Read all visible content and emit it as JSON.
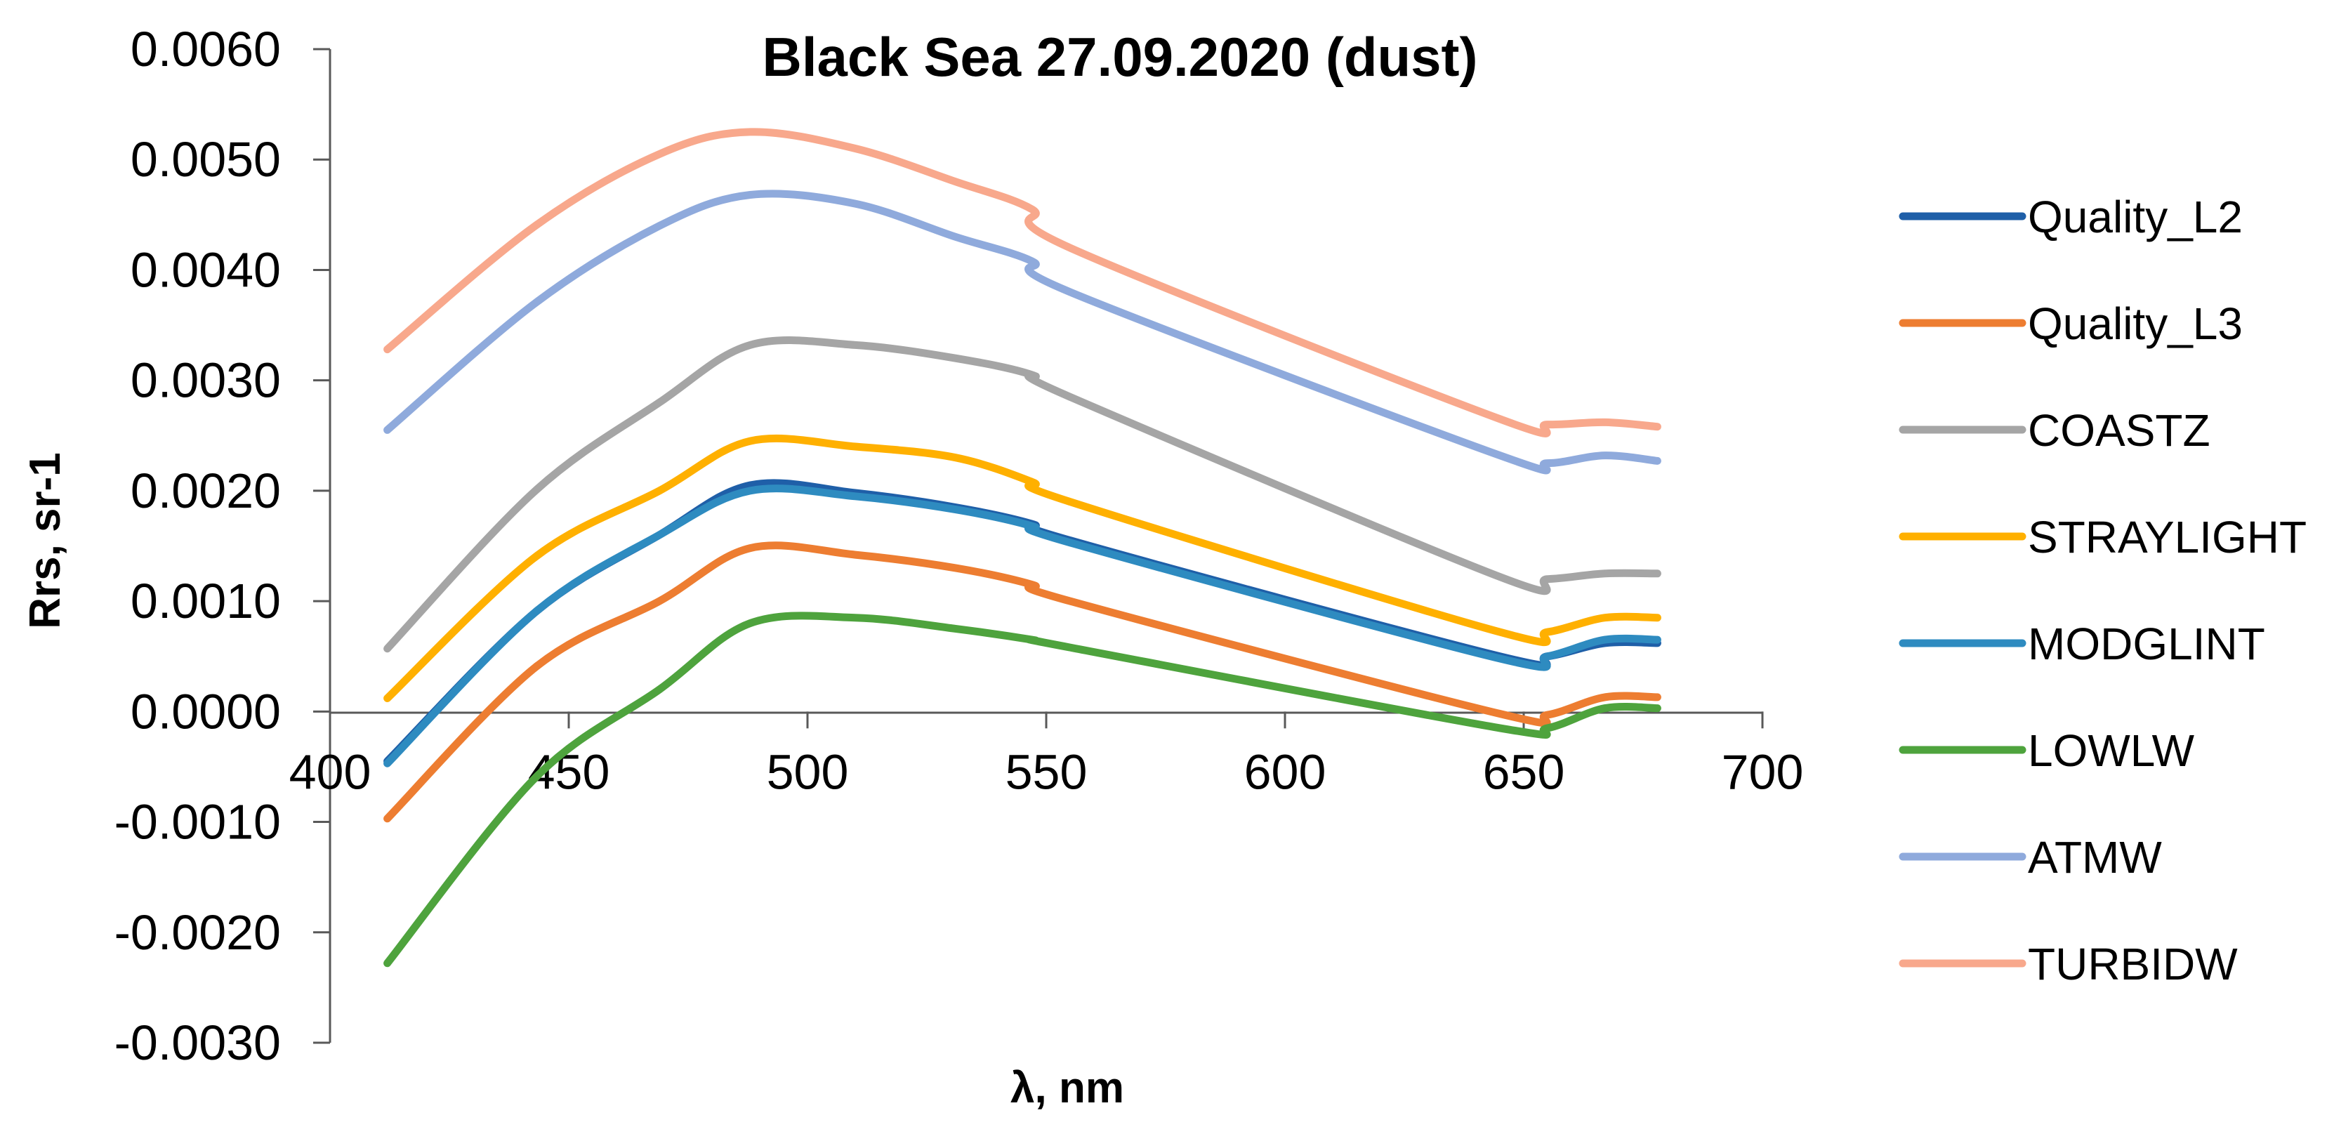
{
  "chart_data": {
    "type": "line",
    "title": "Black Sea 27.09.2020 (dust)",
    "xlabel": "λ, nm",
    "ylabel": "Rrs, sr-1",
    "xlim": [
      400,
      700
    ],
    "ylim": [
      -0.003,
      0.006
    ],
    "x_ticks": [
      "400",
      "450",
      "500",
      "550",
      "600",
      "650",
      "700"
    ],
    "y_ticks": [
      "0.0060",
      "0.0050",
      "0.0040",
      "0.0030",
      "0.0020",
      "0.0010",
      "0.0000",
      "-0.0010",
      "-0.0020",
      "-0.0030"
    ],
    "x_tick_values": [
      400,
      450,
      500,
      550,
      600,
      650,
      700
    ],
    "y_tick_values": [
      0.006,
      0.005,
      0.004,
      0.003,
      0.002,
      0.001,
      0.0,
      -0.001,
      -0.002,
      -0.003
    ],
    "grid": false,
    "legend_position": "right",
    "x": [
      412,
      443,
      469,
      488,
      510,
      531,
      547,
      555,
      645,
      655,
      667,
      678
    ],
    "series": [
      {
        "name": "Quality_L2",
        "color": "#1F5FA8",
        "values": [
          -0.00045,
          0.0009,
          0.0016,
          0.00205,
          0.00198,
          0.00185,
          0.0017,
          0.00155,
          0.0005,
          0.0005,
          0.00062,
          0.00062
        ]
      },
      {
        "name": "Quality_L3",
        "color": "#ED7D31",
        "values": [
          -0.00097,
          0.0004,
          0.001,
          0.00148,
          0.00142,
          0.0013,
          0.00115,
          0.001,
          -2e-05,
          -3e-05,
          0.00013,
          0.00013
        ]
      },
      {
        "name": "COASTZ",
        "color": "#A5A5A5",
        "values": [
          0.00057,
          0.002,
          0.0028,
          0.00332,
          0.00332,
          0.0032,
          0.00305,
          0.00285,
          0.00122,
          0.0012,
          0.00125,
          0.00125
        ]
      },
      {
        "name": "STRAYLIGHT",
        "color": "#FFB000",
        "values": [
          0.00012,
          0.0014,
          0.002,
          0.00245,
          0.0024,
          0.0023,
          0.00208,
          0.0019,
          0.00072,
          0.00072,
          0.00085,
          0.00085
        ]
      },
      {
        "name": "MODGLINT",
        "color": "#2E8BC0",
        "values": [
          -0.00047,
          0.0009,
          0.0016,
          0.002,
          0.00195,
          0.00183,
          0.00168,
          0.00153,
          0.00048,
          0.0005,
          0.00065,
          0.00065
        ]
      },
      {
        "name": "LOWLW",
        "color": "#4EA33D",
        "values": [
          -0.00228,
          -0.0006,
          0.0002,
          0.0008,
          0.00085,
          0.00075,
          0.00065,
          0.00058,
          -0.00015,
          -0.00015,
          3e-05,
          3e-05
        ]
      },
      {
        "name": "ATMW",
        "color": "#8FAADC",
        "values": [
          0.00255,
          0.0037,
          0.0044,
          0.00468,
          0.0046,
          0.0043,
          0.00408,
          0.0038,
          0.00232,
          0.00225,
          0.00232,
          0.00227
        ]
      },
      {
        "name": "TURBIDW",
        "color": "#F8A88C",
        "values": [
          0.00328,
          0.0044,
          0.00505,
          0.00525,
          0.0051,
          0.0048,
          0.00455,
          0.0042,
          0.00265,
          0.0026,
          0.00262,
          0.00258
        ]
      }
    ]
  }
}
